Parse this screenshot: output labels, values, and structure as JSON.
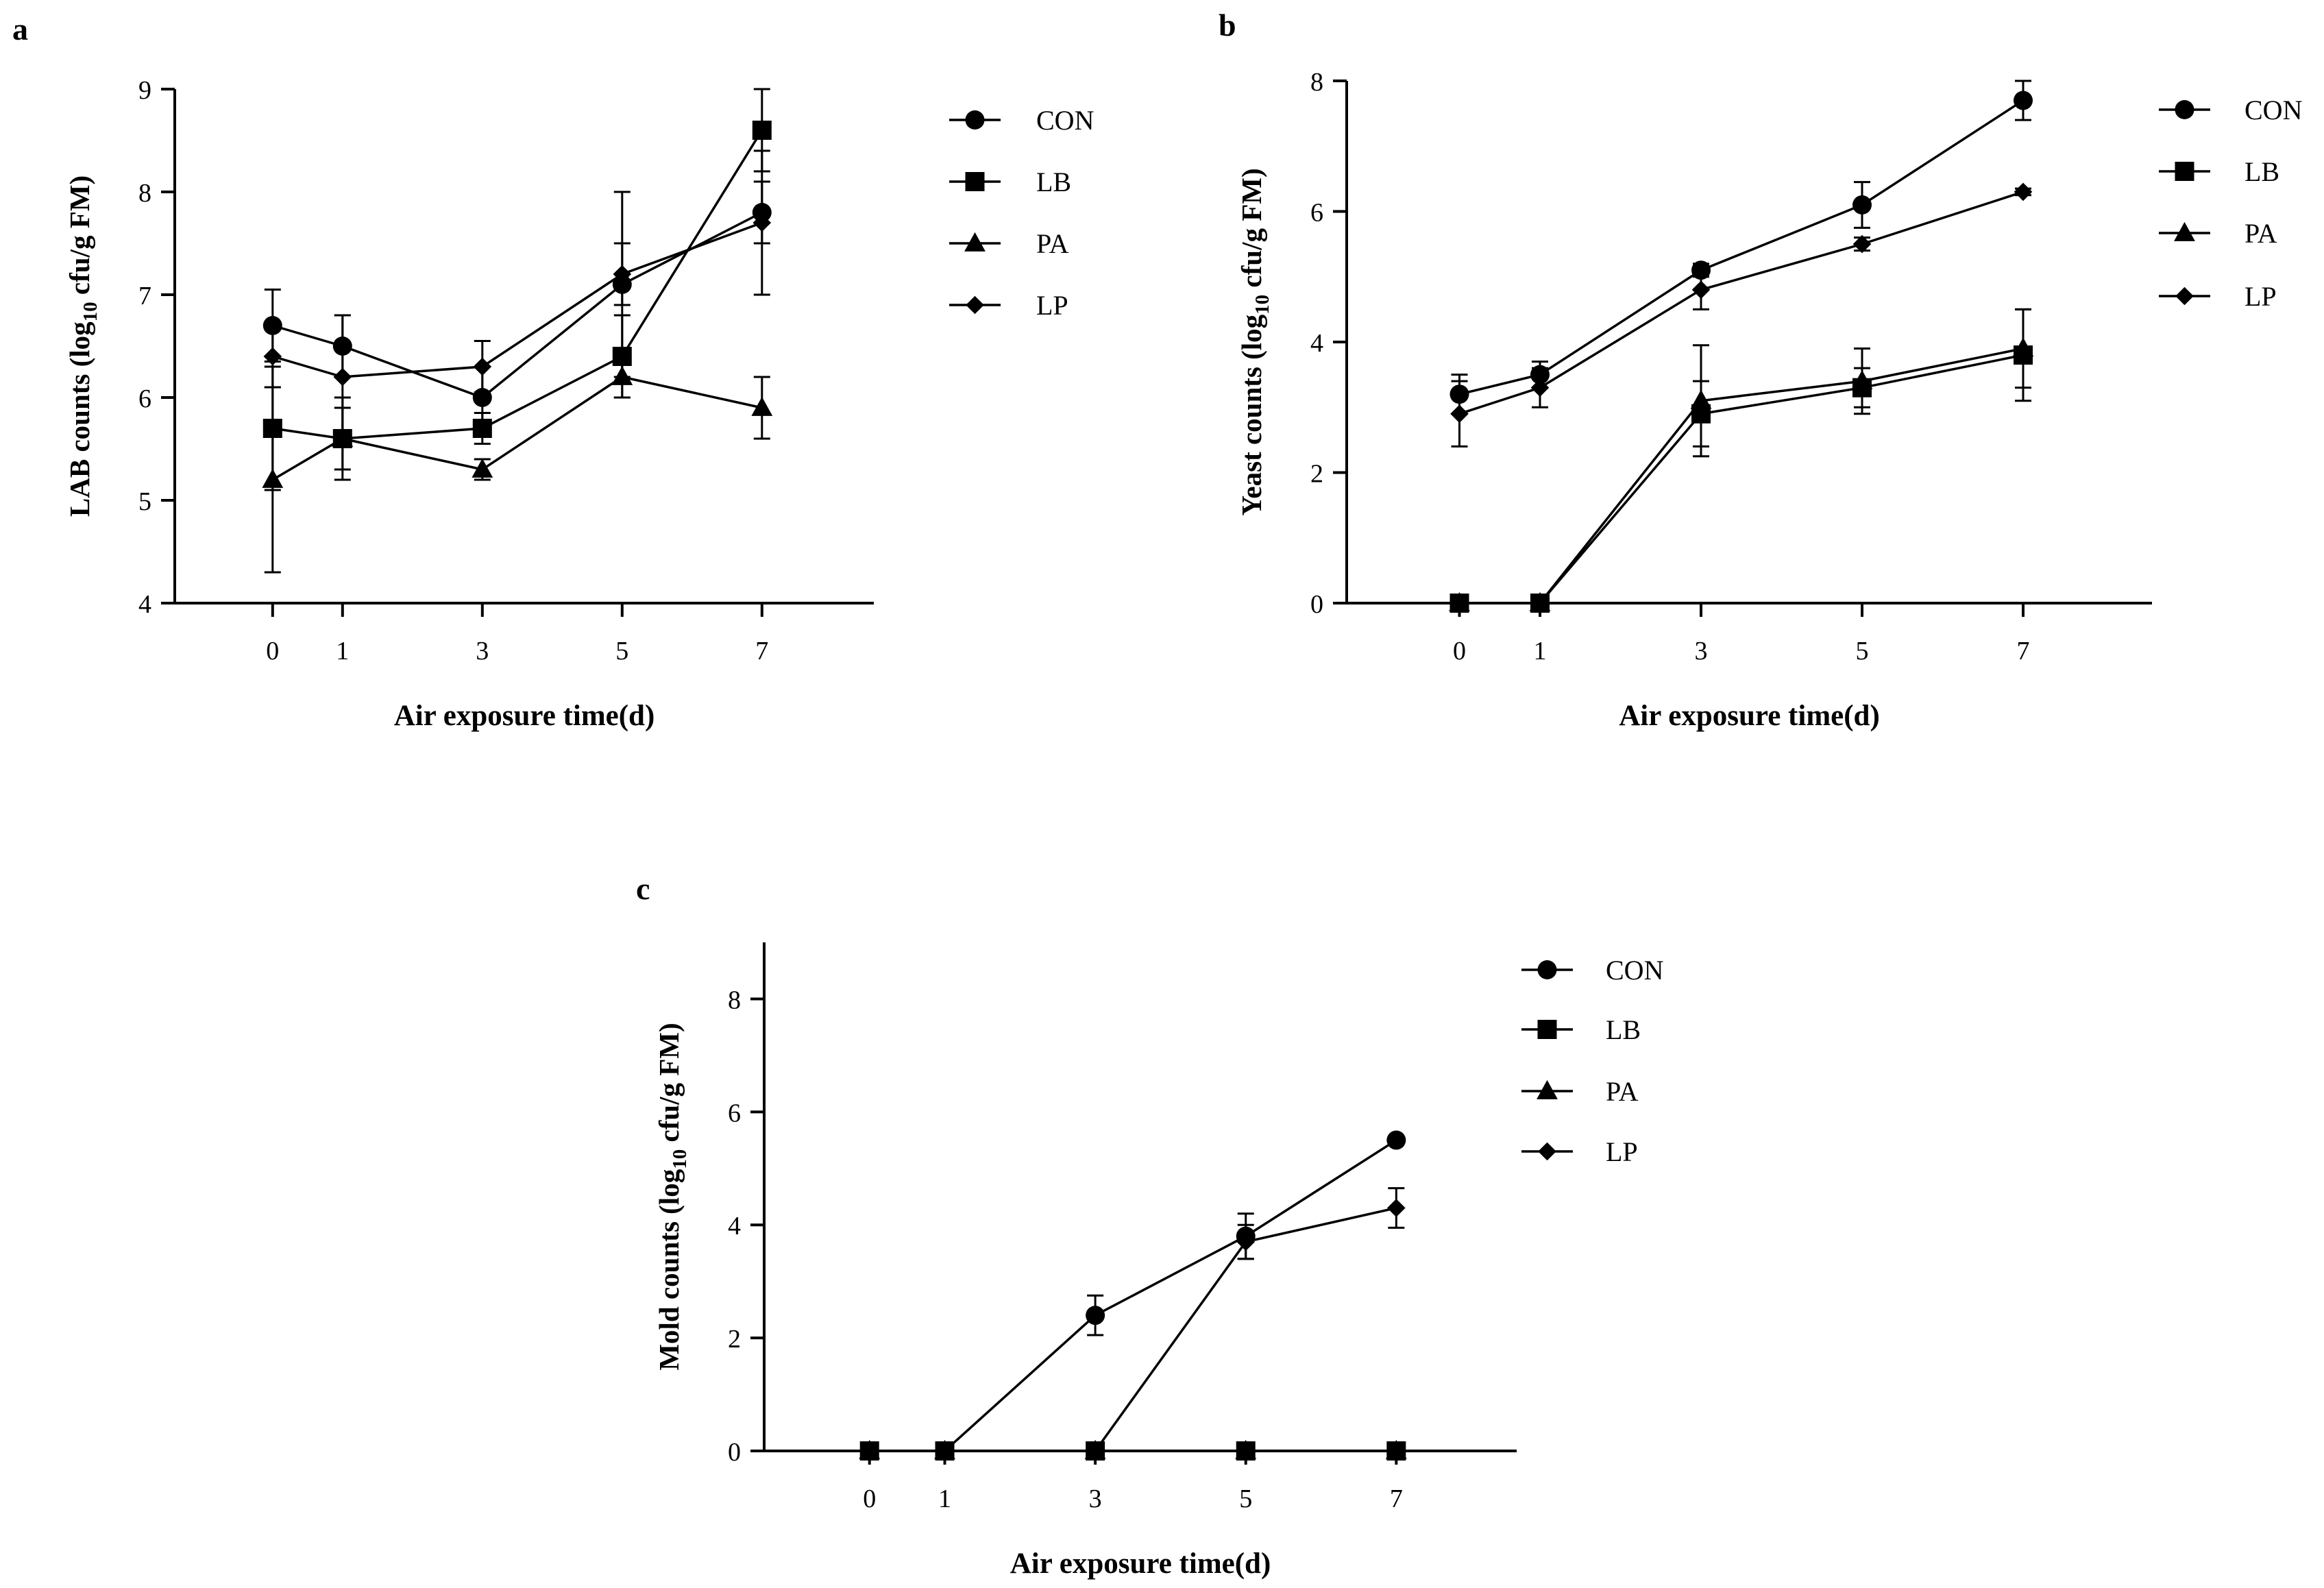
{
  "chart_data": [
    {
      "panel_label": "a",
      "type": "line",
      "xlabel": "Air exposure time(d)",
      "ylabel_pre": "LAB counts (log",
      "ylabel_sub": "10",
      "ylabel_post": " cfu/g FM)",
      "x": [
        0,
        1,
        3,
        5,
        7
      ],
      "xlim": [
        -1.4,
        8.6
      ],
      "ylim": [
        4,
        9
      ],
      "yticks": [
        4,
        5,
        6,
        7,
        8,
        9
      ],
      "legend": [
        "CON",
        "LB",
        "PA",
        "LP"
      ],
      "series": [
        {
          "name": "CON",
          "marker": "circle",
          "values": [
            6.7,
            6.5,
            6.0,
            7.1,
            7.8
          ],
          "errors": [
            0.35,
            0.3,
            0.3,
            0.9,
            0.3
          ]
        },
        {
          "name": "LB",
          "marker": "square",
          "values": [
            5.7,
            5.6,
            5.7,
            6.4,
            8.6
          ],
          "errors": [
            0.6,
            0.4,
            0.15,
            0.4,
            0.4
          ]
        },
        {
          "name": "PA",
          "marker": "triangle",
          "values": [
            5.2,
            5.6,
            5.3,
            6.2,
            5.9
          ],
          "errors": [
            0.9,
            0.3,
            0.1,
            0.2,
            0.3
          ]
        },
        {
          "name": "LP",
          "marker": "diamond",
          "values": [
            6.4,
            6.2,
            6.3,
            7.2,
            7.7
          ],
          "errors": [
            0.3,
            0.6,
            0.25,
            0.3,
            0.7
          ]
        }
      ]
    },
    {
      "panel_label": "b",
      "type": "line",
      "xlabel": "Air exposure time(d)",
      "ylabel_pre": "Yeast counts (log",
      "ylabel_sub": "10",
      "ylabel_post": " cfu/g FM)",
      "x": [
        0,
        1,
        3,
        5,
        7
      ],
      "xlim": [
        -1.4,
        8.6
      ],
      "ylim": [
        0,
        8
      ],
      "yticks": [
        0,
        2,
        4,
        6,
        8
      ],
      "legend": [
        "CON",
        "LB",
        "PA",
        "LP"
      ],
      "series": [
        {
          "name": "CON",
          "marker": "circle",
          "values": [
            3.2,
            3.5,
            5.1,
            6.1,
            7.7
          ],
          "errors": [
            0.3,
            0.2,
            0.1,
            0.35,
            0.3
          ]
        },
        {
          "name": "LB",
          "marker": "square",
          "values": [
            0.0,
            0.0,
            2.9,
            3.3,
            3.8
          ],
          "errors": [
            0,
            0,
            0.5,
            0.3,
            0.7
          ]
        },
        {
          "name": "PA",
          "marker": "triangle",
          "values": [
            0.0,
            0.0,
            3.1,
            3.4,
            3.9
          ],
          "errors": [
            0,
            0,
            0.85,
            0.5,
            0.6
          ]
        },
        {
          "name": "LP",
          "marker": "diamond",
          "values": [
            2.9,
            3.3,
            4.8,
            5.5,
            6.3
          ],
          "errors": [
            0.5,
            0.3,
            0.3,
            0.1,
            0.05
          ]
        }
      ]
    },
    {
      "panel_label": "c",
      "type": "line",
      "xlabel": "Air exposure time(d)",
      "ylabel_pre": "Mold counts (log",
      "ylabel_sub": "10",
      "ylabel_post": " cfu/g FM)",
      "x": [
        0,
        1,
        3,
        5,
        7
      ],
      "xlim": [
        -1.4,
        8.6
      ],
      "ylim": [
        0,
        9
      ],
      "yticks": [
        0,
        2,
        4,
        6,
        8
      ],
      "legend": [
        "CON",
        "LB",
        "PA",
        "LP"
      ],
      "series": [
        {
          "name": "CON",
          "marker": "circle",
          "values": [
            0.0,
            0.0,
            2.4,
            3.8,
            5.5
          ],
          "errors": [
            0,
            0,
            0.35,
            0.4,
            0.05
          ]
        },
        {
          "name": "LB",
          "marker": "square",
          "values": [
            0.0,
            0.0,
            0.0,
            0.0,
            0.0
          ],
          "errors": [
            0,
            0,
            0,
            0,
            0
          ]
        },
        {
          "name": "PA",
          "marker": "triangle",
          "values": [
            0.0,
            0.0,
            0.0,
            0.0,
            0.0
          ],
          "errors": [
            0,
            0,
            0,
            0,
            0
          ]
        },
        {
          "name": "LP",
          "marker": "diamond",
          "values": [
            0.0,
            0.0,
            0.0,
            3.7,
            4.3
          ],
          "errors": [
            0,
            0,
            0,
            0.3,
            0.35
          ]
        }
      ]
    }
  ]
}
